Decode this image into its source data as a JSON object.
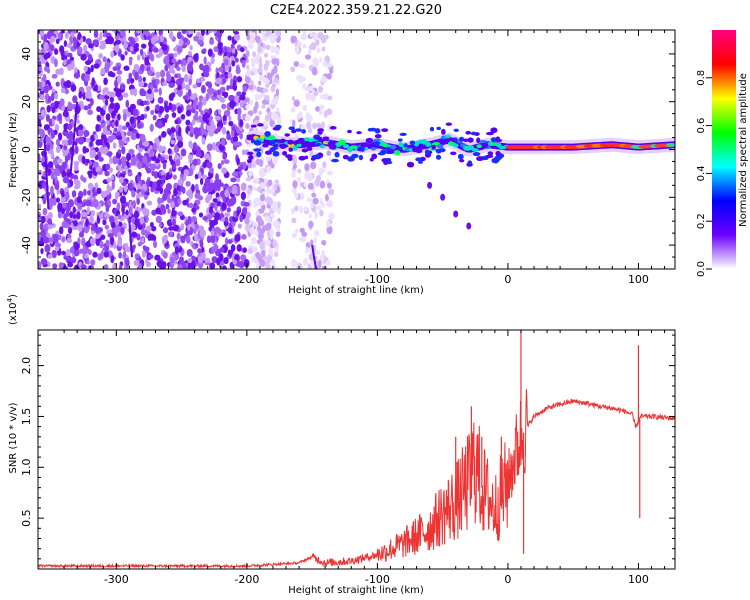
{
  "title": "C2E4.2022.359.21.22.G20",
  "colors": {
    "snr_line": "#ee3333",
    "scatter_purple": "#7a22ee",
    "frame": "#000000"
  },
  "chart_data": [
    {
      "type": "heatmap",
      "xlabel": "Height of straight line (km)",
      "ylabel": "Frequency (Hz)",
      "xlim": [
        -360,
        128
      ],
      "ylim": [
        -50,
        50
      ],
      "xticks": [
        -300,
        -200,
        -100,
        0,
        100
      ],
      "yticks": [
        -40,
        -20,
        0,
        20,
        40
      ],
      "colorbar": {
        "label": "Normalized spectral amplitude",
        "range": [
          0.0,
          1.0
        ],
        "ticks": [
          "0.0",
          "0.2",
          "0.4",
          "0.6",
          "0.8"
        ],
        "tick_values": [
          0.0,
          0.2,
          0.4,
          0.6,
          0.8
        ],
        "colormap": [
          "#ffffff",
          "#6a00ff",
          "#0000ff",
          "#00ffff",
          "#00ff00",
          "#ffff00",
          "#ff0000",
          "#ff0080"
        ]
      },
      "features": {
        "noise_region_x": [
          -360,
          -200
        ],
        "noise_column_x": [
          -165,
          -135
        ],
        "signal_track": {
          "x": [
            -195,
            -180,
            -160,
            -140,
            -120,
            -100,
            -80,
            -60,
            -45,
            -30,
            -15,
            0,
            20,
            50,
            80,
            100,
            128
          ],
          "y": [
            5,
            3,
            2,
            3,
            1,
            2,
            0,
            2,
            4,
            0,
            2,
            1,
            1,
            1,
            2,
            1,
            2
          ]
        },
        "descending_branch": {
          "x": [
            -60,
            -50,
            -40,
            -30
          ],
          "y": [
            -15,
            -20,
            -27,
            -32
          ]
        }
      }
    },
    {
      "type": "line",
      "xlabel": "Height of straight line (km)",
      "ylabel": "SNR (10 * v/v)",
      "multiplier": "(x10",
      "multiplier_exp": "4",
      "multiplier_close": ")",
      "xlim": [
        -360,
        128
      ],
      "ylim": [
        0,
        2.35
      ],
      "xticks": [
        -300,
        -200,
        -100,
        0,
        100
      ],
      "yticks": [
        "0.5",
        "1.0",
        "1.5",
        "2.0"
      ],
      "ytick_values": [
        0.5,
        1.0,
        1.5,
        2.0
      ],
      "envelope": {
        "x": [
          -360,
          -250,
          -200,
          -160,
          -150,
          -140,
          -120,
          -100,
          -80,
          -60,
          -50,
          -40,
          -30,
          -25,
          -20,
          -10,
          0,
          5,
          10,
          15,
          20,
          30,
          40,
          50,
          60,
          70,
          80,
          90,
          95,
          98,
          100,
          102,
          105,
          110,
          128
        ],
        "y": [
          0.03,
          0.03,
          0.03,
          0.06,
          0.12,
          0.06,
          0.08,
          0.14,
          0.25,
          0.4,
          0.55,
          0.65,
          0.85,
          1.05,
          0.8,
          0.6,
          0.85,
          1.1,
          1.3,
          1.4,
          1.5,
          1.58,
          1.62,
          1.65,
          1.63,
          1.6,
          1.58,
          1.55,
          1.52,
          1.4,
          1.45,
          1.5,
          1.5,
          1.5,
          1.48
        ]
      },
      "spikes": [
        {
          "x": -40,
          "y": 1.3
        },
        {
          "x": -28,
          "y": 1.6
        },
        {
          "x": -20,
          "y": 1.3
        },
        {
          "x": -5,
          "y": 1.3
        },
        {
          "x": 10,
          "y": 2.35
        },
        {
          "x": 12,
          "y": 0.15
        },
        {
          "x": 100,
          "y": 2.2
        },
        {
          "x": 101,
          "y": 0.5
        }
      ]
    }
  ]
}
